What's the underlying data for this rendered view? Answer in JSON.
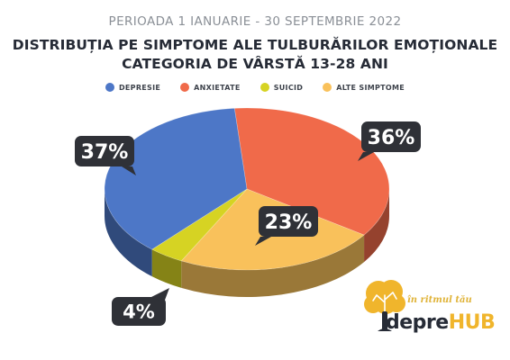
{
  "header": {
    "subtitle": "PERIOADA 1 IANUARIE - 30 SEPTEMBRIE 2022",
    "title_line1": "DISTRIBUȚIA PE SIMPTOME ALE TULBURĂRILOR EMOȚIONALE",
    "title_line2": "CATEGORIA DE VÂRSTĂ 13-28 ANI"
  },
  "chart_data": {
    "type": "pie",
    "style": "3d",
    "legend_position": "top",
    "categories": [
      "DEPRESIE",
      "ANXIETATE",
      "SUICID",
      "ALTE SIMPTOME"
    ],
    "values": [
      37,
      36,
      4,
      23
    ],
    "labels": [
      "37%",
      "36%",
      "4%",
      "23%"
    ],
    "colors": [
      "#4d77c7",
      "#f06a4a",
      "#d6d323",
      "#f9c15b"
    ]
  },
  "brand": {
    "tagline": "în ritmul tău",
    "name_part1": "depre",
    "name_part2": "HUB",
    "icon": "brain-tree-icon"
  }
}
